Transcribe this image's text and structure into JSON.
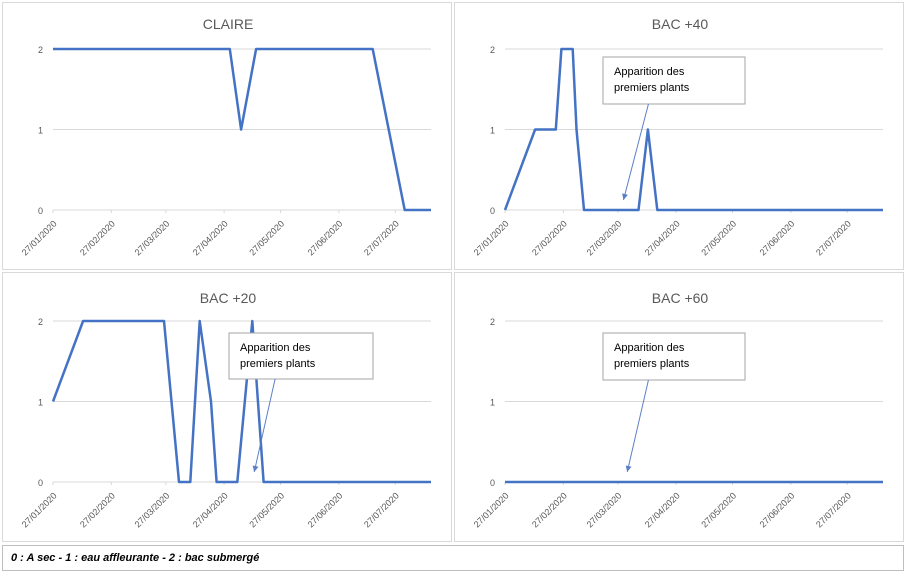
{
  "chart_data": [
    {
      "type": "line",
      "title": "CLAIRE",
      "x_tick_labels": [
        "27/01/2020",
        "27/02/2020",
        "27/03/2020",
        "27/04/2020",
        "27/05/2020",
        "27/06/2020",
        "27/07/2020"
      ],
      "y_tick_labels": [
        "0",
        "1",
        "2"
      ],
      "ylim": [
        0,
        2
      ],
      "xlim": [
        "2020-01-27",
        "2020-08-15"
      ],
      "grid": true,
      "color": "#4472C4",
      "points": [
        {
          "x": "2020-01-27",
          "y": 2
        },
        {
          "x": "2020-04-30",
          "y": 2
        },
        {
          "x": "2020-05-06",
          "y": 1
        },
        {
          "x": "2020-05-14",
          "y": 2
        },
        {
          "x": "2020-07-15",
          "y": 2
        },
        {
          "x": "2020-08-01",
          "y": 0
        },
        {
          "x": "2020-08-15",
          "y": 0
        }
      ],
      "annotation": null
    },
    {
      "type": "line",
      "title": "BAC +40",
      "x_tick_labels": [
        "27/01/2020",
        "27/02/2020",
        "27/03/2020",
        "27/04/2020",
        "27/05/2020",
        "27/06/2020",
        "27/07/2020"
      ],
      "y_tick_labels": [
        "0",
        "1",
        "2"
      ],
      "ylim": [
        0,
        2
      ],
      "xlim": [
        "2020-01-27",
        "2020-08-15"
      ],
      "grid": true,
      "color": "#4472C4",
      "points": [
        {
          "x": "2020-01-27",
          "y": 0
        },
        {
          "x": "2020-02-12",
          "y": 1
        },
        {
          "x": "2020-02-23",
          "y": 1
        },
        {
          "x": "2020-02-26",
          "y": 2
        },
        {
          "x": "2020-03-03",
          "y": 2
        },
        {
          "x": "2020-03-05",
          "y": 1
        },
        {
          "x": "2020-03-09",
          "y": 0
        },
        {
          "x": "2020-04-07",
          "y": 0
        },
        {
          "x": "2020-04-12",
          "y": 1
        },
        {
          "x": "2020-04-17",
          "y": 0
        },
        {
          "x": "2020-08-15",
          "y": 0
        }
      ],
      "annotation": {
        "text_lines": [
          "Apparition des",
          "premiers plants"
        ],
        "arrow_x": "2020-03-30"
      }
    },
    {
      "type": "line",
      "title": "BAC +20",
      "x_tick_labels": [
        "27/01/2020",
        "27/02/2020",
        "27/03/2020",
        "27/04/2020",
        "27/05/2020",
        "27/06/2020",
        "27/07/2020"
      ],
      "y_tick_labels": [
        "0",
        "1",
        "2"
      ],
      "ylim": [
        0,
        2
      ],
      "xlim": [
        "2020-01-27",
        "2020-08-15"
      ],
      "grid": true,
      "color": "#4472C4",
      "points": [
        {
          "x": "2020-01-27",
          "y": 1
        },
        {
          "x": "2020-02-12",
          "y": 2
        },
        {
          "x": "2020-03-26",
          "y": 2
        },
        {
          "x": "2020-04-03",
          "y": 0
        },
        {
          "x": "2020-04-09",
          "y": 0
        },
        {
          "x": "2020-04-14",
          "y": 2
        },
        {
          "x": "2020-04-20",
          "y": 1
        },
        {
          "x": "2020-04-23",
          "y": 0
        },
        {
          "x": "2020-05-04",
          "y": 0
        },
        {
          "x": "2020-05-12",
          "y": 2
        },
        {
          "x": "2020-05-18",
          "y": 0
        },
        {
          "x": "2020-08-15",
          "y": 0
        }
      ],
      "annotation": {
        "text_lines": [
          "Apparition des",
          "premiers plants"
        ],
        "arrow_x": "2020-05-13"
      }
    },
    {
      "type": "line",
      "title": "BAC +60",
      "x_tick_labels": [
        "27/01/2020",
        "27/02/2020",
        "27/03/2020",
        "27/04/2020",
        "27/05/2020",
        "27/06/2020",
        "27/07/2020"
      ],
      "y_tick_labels": [
        "0",
        "1",
        "2"
      ],
      "ylim": [
        0,
        2
      ],
      "xlim": [
        "2020-01-27",
        "2020-08-15"
      ],
      "grid": true,
      "color": "#4472C4",
      "points": [
        {
          "x": "2020-01-27",
          "y": 0
        },
        {
          "x": "2020-08-15",
          "y": 0
        }
      ],
      "annotation": {
        "text_lines": [
          "Apparition des",
          "premiers plants"
        ],
        "arrow_x": "2020-04-01"
      }
    }
  ],
  "legend_note": "0 : A sec  -  1 : eau affleurante - 2 : bac submergé"
}
